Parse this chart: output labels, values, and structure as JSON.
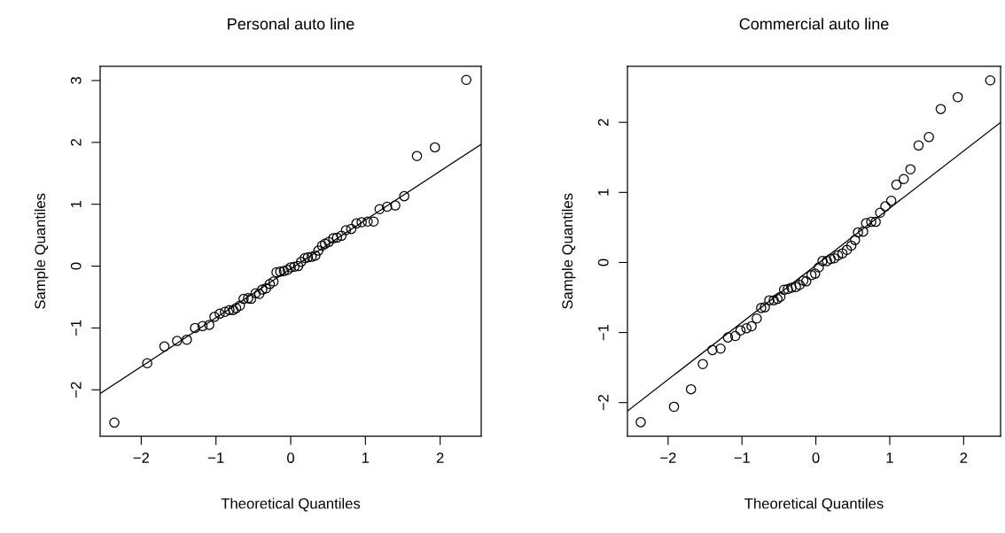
{
  "chart_data": [
    {
      "type": "scatter",
      "title": "Personal auto line",
      "xlabel": "Theoretical Quantiles",
      "ylabel": "Sample Quantiles",
      "xlim": [
        -2.55,
        2.55
      ],
      "ylim": [
        -2.75,
        3.23
      ],
      "xticks": [
        -2,
        -1,
        0,
        1,
        2
      ],
      "yticks": [
        -2,
        -1,
        0,
        1,
        2,
        3
      ],
      "grid": false,
      "legend": false,
      "series": [
        {
          "marker": "circle",
          "color": "#000000",
          "x": [
            -2.36,
            -1.92,
            -1.69,
            -1.52,
            -1.39,
            -1.28,
            -1.18,
            -1.09,
            -1.02,
            -0.95,
            -0.88,
            -0.82,
            -0.77,
            -0.73,
            -0.68,
            -0.63,
            -0.57,
            -0.53,
            -0.47,
            -0.42,
            -0.38,
            -0.33,
            -0.28,
            -0.23,
            -0.19,
            -0.14,
            -0.09,
            -0.04,
            0.0,
            0.05,
            0.1,
            0.14,
            0.19,
            0.23,
            0.28,
            0.33,
            0.37,
            0.42,
            0.46,
            0.51,
            0.57,
            0.62,
            0.68,
            0.74,
            0.81,
            0.88,
            0.95,
            1.03,
            1.11,
            1.19,
            1.29,
            1.4,
            1.52,
            1.69,
            1.93,
            2.35
          ],
          "values": [
            -2.53,
            -1.57,
            -1.3,
            -1.21,
            -1.19,
            -1.0,
            -0.97,
            -0.95,
            -0.82,
            -0.77,
            -0.74,
            -0.71,
            -0.71,
            -0.68,
            -0.64,
            -0.53,
            -0.52,
            -0.53,
            -0.44,
            -0.45,
            -0.38,
            -0.36,
            -0.29,
            -0.25,
            -0.1,
            -0.09,
            -0.08,
            -0.06,
            -0.02,
            -0.01,
            0.0,
            0.07,
            0.13,
            0.14,
            0.15,
            0.17,
            0.25,
            0.33,
            0.36,
            0.39,
            0.45,
            0.46,
            0.49,
            0.58,
            0.6,
            0.69,
            0.71,
            0.72,
            0.72,
            0.92,
            0.96,
            0.98,
            1.13,
            1.78,
            1.92,
            3.01
          ]
        },
        {
          "type": "line",
          "color": "#000000",
          "line_style": "solid",
          "x": [
            -2.55,
            2.55
          ],
          "values": [
            -2.06,
            1.97
          ]
        }
      ]
    },
    {
      "type": "scatter",
      "title": "Commercial auto line",
      "xlabel": "Theoretical Quantiles",
      "ylabel": "Sample Quantiles",
      "xlim": [
        -2.55,
        2.5
      ],
      "ylim": [
        -2.48,
        2.8
      ],
      "xticks": [
        -2,
        -1,
        0,
        1,
        2
      ],
      "yticks": [
        -2,
        -1,
        0,
        1,
        2
      ],
      "grid": false,
      "legend": false,
      "series": [
        {
          "marker": "circle",
          "color": "#000000",
          "x": [
            -2.37,
            -1.92,
            -1.69,
            -1.53,
            -1.4,
            -1.29,
            -1.19,
            -1.09,
            -1.02,
            -0.94,
            -0.87,
            -0.8,
            -0.74,
            -0.69,
            -0.63,
            -0.57,
            -0.52,
            -0.48,
            -0.43,
            -0.38,
            -0.33,
            -0.27,
            -0.22,
            -0.17,
            -0.13,
            -0.06,
            -0.01,
            0.04,
            0.09,
            0.15,
            0.2,
            0.25,
            0.3,
            0.36,
            0.42,
            0.48,
            0.53,
            0.57,
            0.64,
            0.68,
            0.75,
            0.81,
            0.87,
            0.94,
            1.02,
            1.09,
            1.19,
            1.28,
            1.39,
            1.53,
            1.69,
            1.92,
            2.36
          ],
          "values": [
            -2.28,
            -2.06,
            -1.81,
            -1.45,
            -1.25,
            -1.23,
            -1.07,
            -1.05,
            -0.97,
            -0.94,
            -0.91,
            -0.8,
            -0.65,
            -0.64,
            -0.54,
            -0.54,
            -0.52,
            -0.49,
            -0.39,
            -0.38,
            -0.36,
            -0.35,
            -0.32,
            -0.26,
            -0.27,
            -0.18,
            -0.16,
            -0.07,
            0.02,
            0.02,
            0.05,
            0.06,
            0.1,
            0.13,
            0.18,
            0.24,
            0.32,
            0.43,
            0.44,
            0.56,
            0.58,
            0.58,
            0.71,
            0.8,
            0.88,
            1.11,
            1.19,
            1.33,
            1.67,
            1.79,
            2.19,
            2.36,
            2.6
          ]
        },
        {
          "type": "line",
          "color": "#000000",
          "line_style": "solid",
          "x": [
            -2.55,
            2.5
          ],
          "values": [
            -2.12,
            2.0
          ]
        }
      ]
    }
  ]
}
